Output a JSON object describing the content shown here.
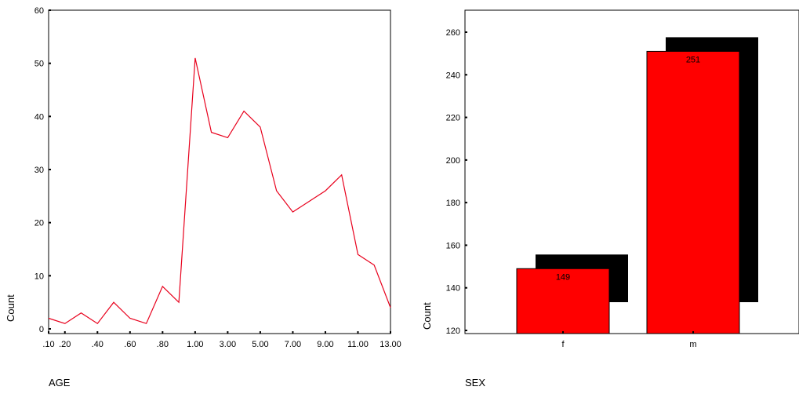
{
  "chart_data": [
    {
      "type": "line",
      "xlabel": "AGE",
      "ylabel": "Count",
      "ylim": [
        0,
        60
      ],
      "y_ticks": [
        0,
        10,
        20,
        30,
        40,
        50,
        60
      ],
      "x_tick_labels": [
        ".10",
        ".20",
        ".40",
        ".60",
        ".80",
        "1.00",
        "3.00",
        "5.00",
        "7.00",
        "9.00",
        "11.00",
        "13.00"
      ],
      "categories": [
        ".10",
        ".20",
        ".30",
        ".40",
        ".50",
        ".60",
        ".70",
        ".80",
        ".90",
        "1.00",
        "2.00",
        "3.00",
        "4.00",
        "5.00",
        "6.00",
        "7.00",
        "8.00",
        "9.00",
        "10.00",
        "11.00",
        "12.00",
        "13.00"
      ],
      "series": [
        {
          "values": [
            2,
            1,
            3,
            1,
            5,
            2,
            1,
            8,
            5,
            51,
            37,
            36,
            41,
            38,
            26,
            22,
            24,
            26,
            29,
            14,
            12,
            4
          ]
        }
      ],
      "line_color": "#e8001c",
      "grid": false
    },
    {
      "type": "bar",
      "xlabel": "SEX",
      "ylabel": "Count",
      "ylim": [
        120,
        260
      ],
      "y_ticks": [
        120,
        140,
        160,
        180,
        200,
        220,
        240,
        260
      ],
      "categories": [
        "f",
        "m"
      ],
      "values": [
        149,
        251
      ],
      "data_labels": [
        "149",
        "251"
      ],
      "bar_color": "#ff0000",
      "shadow_color": "#000000",
      "grid": false
    }
  ]
}
